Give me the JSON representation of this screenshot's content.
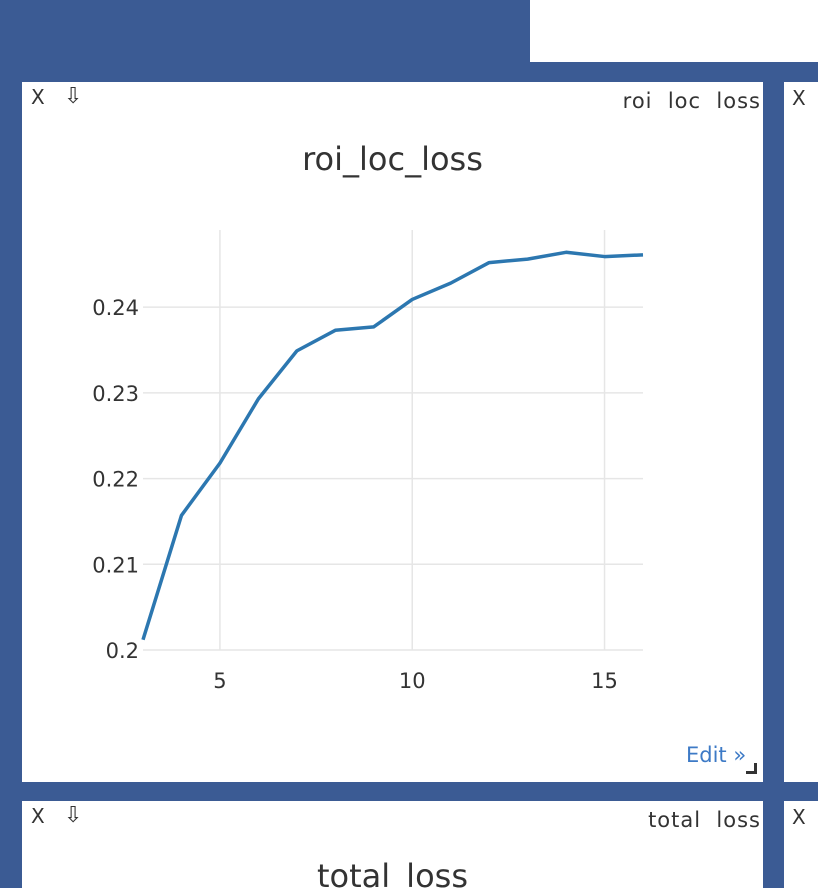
{
  "controls": {
    "close_glyph": "X",
    "download_glyph": "⇩",
    "edit_label": "Edit »"
  },
  "panes": {
    "main": {
      "label": "roi  loc  loss",
      "title": "roi_loc_loss"
    },
    "bottom": {
      "label": "total  loss",
      "title": "total_loss"
    }
  },
  "chart_data": {
    "type": "line",
    "title": "roi_loc_loss",
    "xlabel": "",
    "ylabel": "",
    "x": [
      3,
      4,
      5,
      6,
      7,
      8,
      9,
      10,
      11,
      12,
      13,
      14,
      15,
      16
    ],
    "series": [
      {
        "values": [
          0.2012,
          0.2157,
          0.2218,
          0.2293,
          0.2349,
          0.2373,
          0.2377,
          0.2409,
          0.2428,
          0.2452,
          0.2456,
          0.2464,
          0.2459,
          0.2461
        ]
      }
    ],
    "xlim": [
      3,
      16
    ],
    "ylim": [
      0.2,
      0.249
    ],
    "x_ticks": [
      "5",
      "10",
      "15"
    ],
    "y_ticks": [
      "0.2",
      "0.21",
      "0.22",
      "0.23",
      "0.24"
    ],
    "grid": true,
    "line_color": "#2c77b0"
  }
}
